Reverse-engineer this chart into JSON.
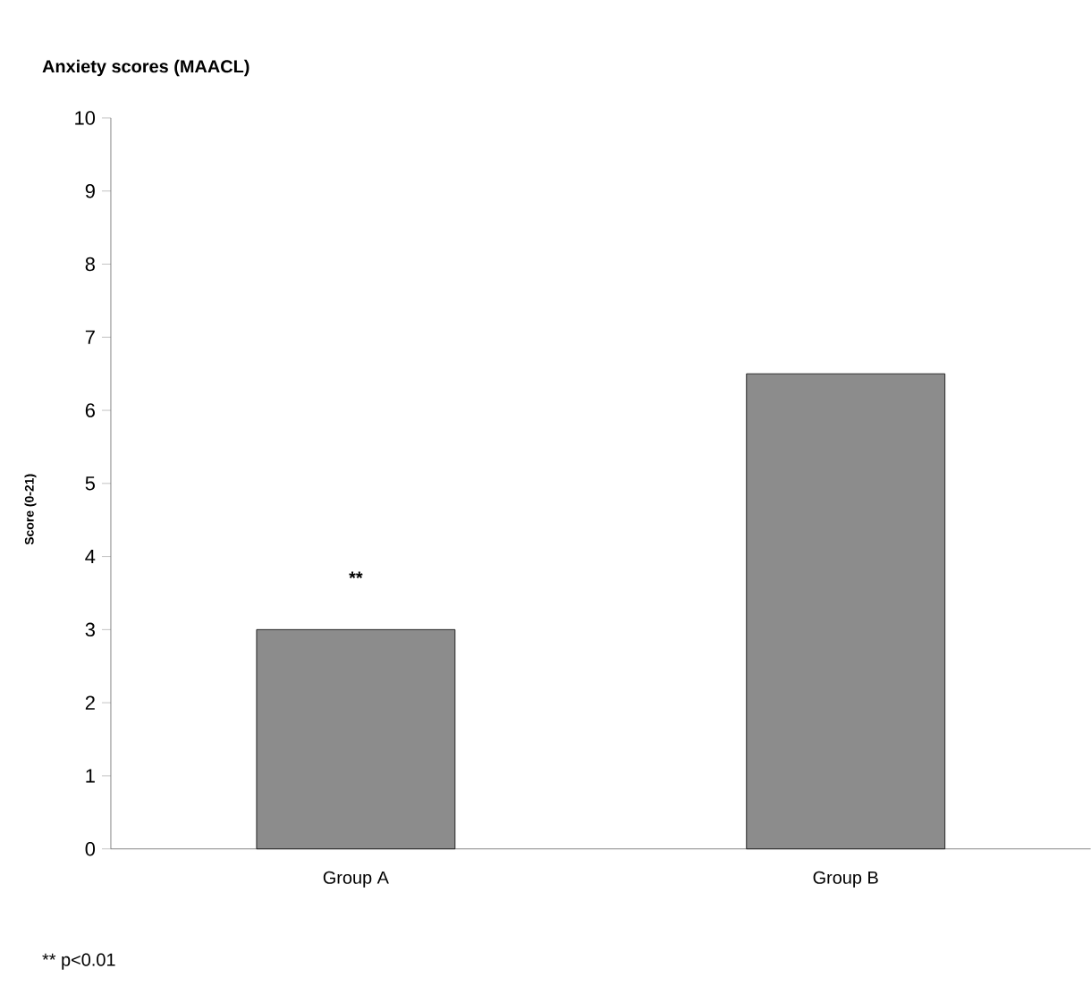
{
  "chart_data": {
    "type": "bar",
    "title": "Anxiety scores (MAACL)",
    "ylabel": "Score (0-21)",
    "categories": [
      "Group A",
      "Group B"
    ],
    "values": [
      3.0,
      6.5
    ],
    "color": "#8c8c8c",
    "ylim": [
      0,
      10
    ],
    "yticks": [
      0,
      1,
      2,
      3,
      4,
      5,
      6,
      7,
      8,
      9,
      10
    ],
    "annotations": [
      "**",
      "** p<0.01"
    ]
  }
}
